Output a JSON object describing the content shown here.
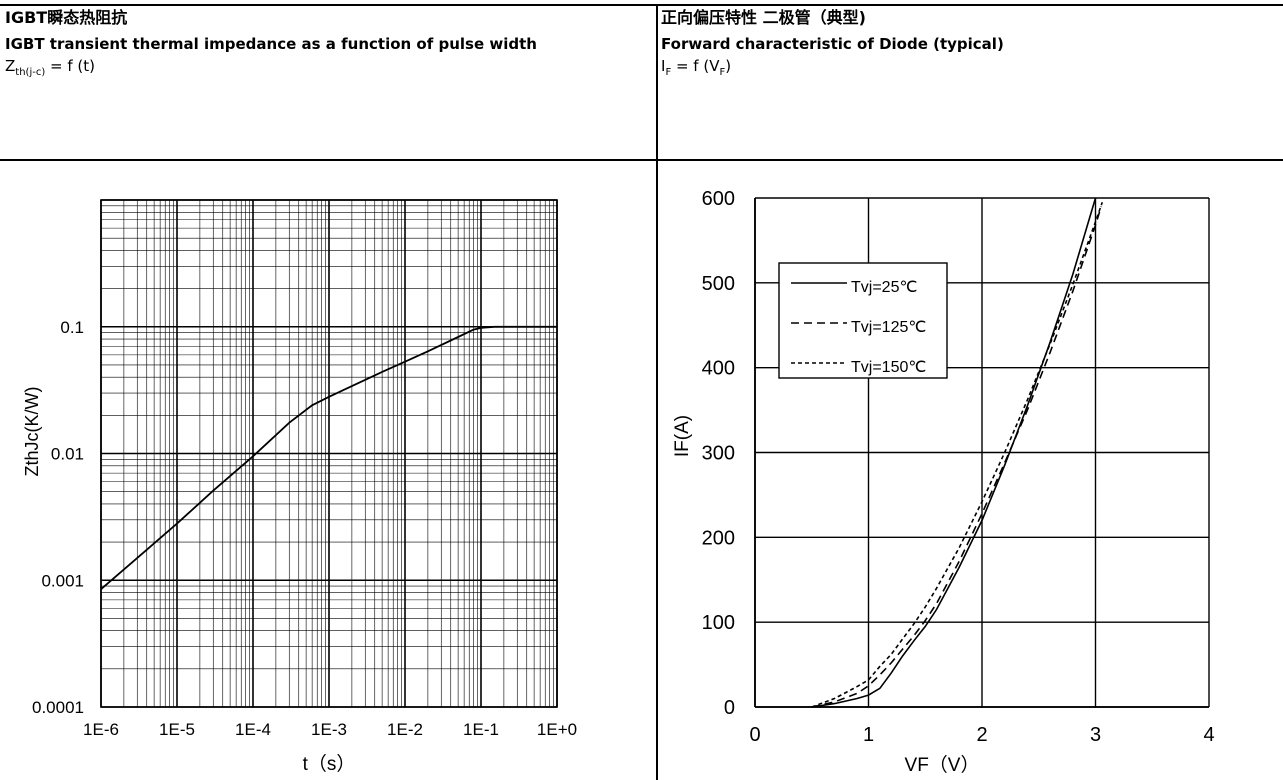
{
  "left": {
    "title_zh": "IGBT瞬态热阻抗",
    "title_en": "IGBT transient thermal impedance as a function of pulse width",
    "formula": {
      "z": "Z",
      "sub": "th(j-c)",
      "rest": " = f (t)"
    }
  },
  "right": {
    "title_zh": "正向偏压特性 二极管（典型)",
    "title_en": "Forward characteristic of Diode (typical)",
    "formula": {
      "i": "I",
      "sub": "F",
      "mid": " = f (V",
      "sub2": "F",
      "end": ")"
    }
  },
  "chart_data": [
    {
      "type": "line",
      "title": "",
      "xlabel": "t（s）",
      "ylabel": "ZthJc(K/W)",
      "xscale": "log",
      "yscale": "log",
      "xlim": [
        1e-06,
        1
      ],
      "ylim": [
        0.0001,
        1
      ],
      "x_ticks": [
        "1E-6",
        "1E-5",
        "1E-4",
        "1E-3",
        "1E-2",
        "1E-1",
        "1E+0"
      ],
      "y_ticks": [
        "0.0001",
        "0.001",
        "0.01",
        "0.1"
      ],
      "grid": true,
      "series": [
        {
          "x": [
            1e-06,
            3e-06,
            1e-05,
            3e-05,
            0.0001,
            0.0003,
            0.0006,
            0.001,
            0.002,
            0.005,
            0.01,
            0.02,
            0.05,
            0.08,
            0.1,
            0.15,
            0.2,
            0.3,
            0.5,
            1
          ],
          "values": [
            0.00085,
            0.0015,
            0.0028,
            0.0051,
            0.0095,
            0.0175,
            0.024,
            0.028,
            0.034,
            0.044,
            0.053,
            0.064,
            0.083,
            0.095,
            0.098,
            0.1,
            0.1,
            0.1,
            0.1,
            0.1
          ]
        }
      ]
    },
    {
      "type": "line",
      "title": "",
      "xlabel": "VF（V）",
      "ylabel": "IF(A)",
      "xlim": [
        0,
        4
      ],
      "ylim": [
        0,
        600
      ],
      "x_ticks": [
        "0",
        "1",
        "2",
        "3",
        "4"
      ],
      "y_ticks": [
        "0",
        "100",
        "200",
        "300",
        "400",
        "500",
        "600"
      ],
      "grid": true,
      "legend_position": "top-left",
      "series": [
        {
          "name": "Tvj=25℃",
          "style": "solid",
          "x": [
            0.5,
            0.7,
            0.9,
            1.0,
            1.1,
            1.2,
            1.3,
            1.4,
            1.5,
            1.6,
            1.8,
            2.0,
            2.2,
            2.4,
            2.6,
            2.8,
            3.0
          ],
          "values": [
            0,
            4,
            10,
            14,
            22,
            40,
            60,
            78,
            95,
            115,
            165,
            220,
            285,
            355,
            430,
            510,
            600
          ]
        },
        {
          "name": "Tvj=125℃",
          "style": "dashed",
          "x": [
            0.5,
            0.7,
            0.9,
            1.0,
            1.1,
            1.2,
            1.3,
            1.4,
            1.5,
            1.6,
            1.8,
            2.0,
            2.2,
            2.4,
            2.6,
            2.8,
            3.0,
            3.05
          ],
          "values": [
            0,
            6,
            16,
            25,
            38,
            52,
            68,
            84,
            102,
            122,
            172,
            228,
            288,
            350,
            418,
            490,
            568,
            590
          ]
        },
        {
          "name": "Tvj=150℃",
          "style": "dotted",
          "x": [
            0.5,
            0.7,
            0.9,
            1.0,
            1.1,
            1.2,
            1.3,
            1.4,
            1.5,
            1.6,
            1.8,
            2.0,
            2.2,
            2.4,
            2.6,
            2.8,
            3.0,
            3.06
          ],
          "values": [
            0,
            10,
            24,
            32,
            48,
            62,
            80,
            98,
            118,
            140,
            188,
            242,
            300,
            362,
            428,
            498,
            572,
            595
          ]
        }
      ]
    }
  ]
}
